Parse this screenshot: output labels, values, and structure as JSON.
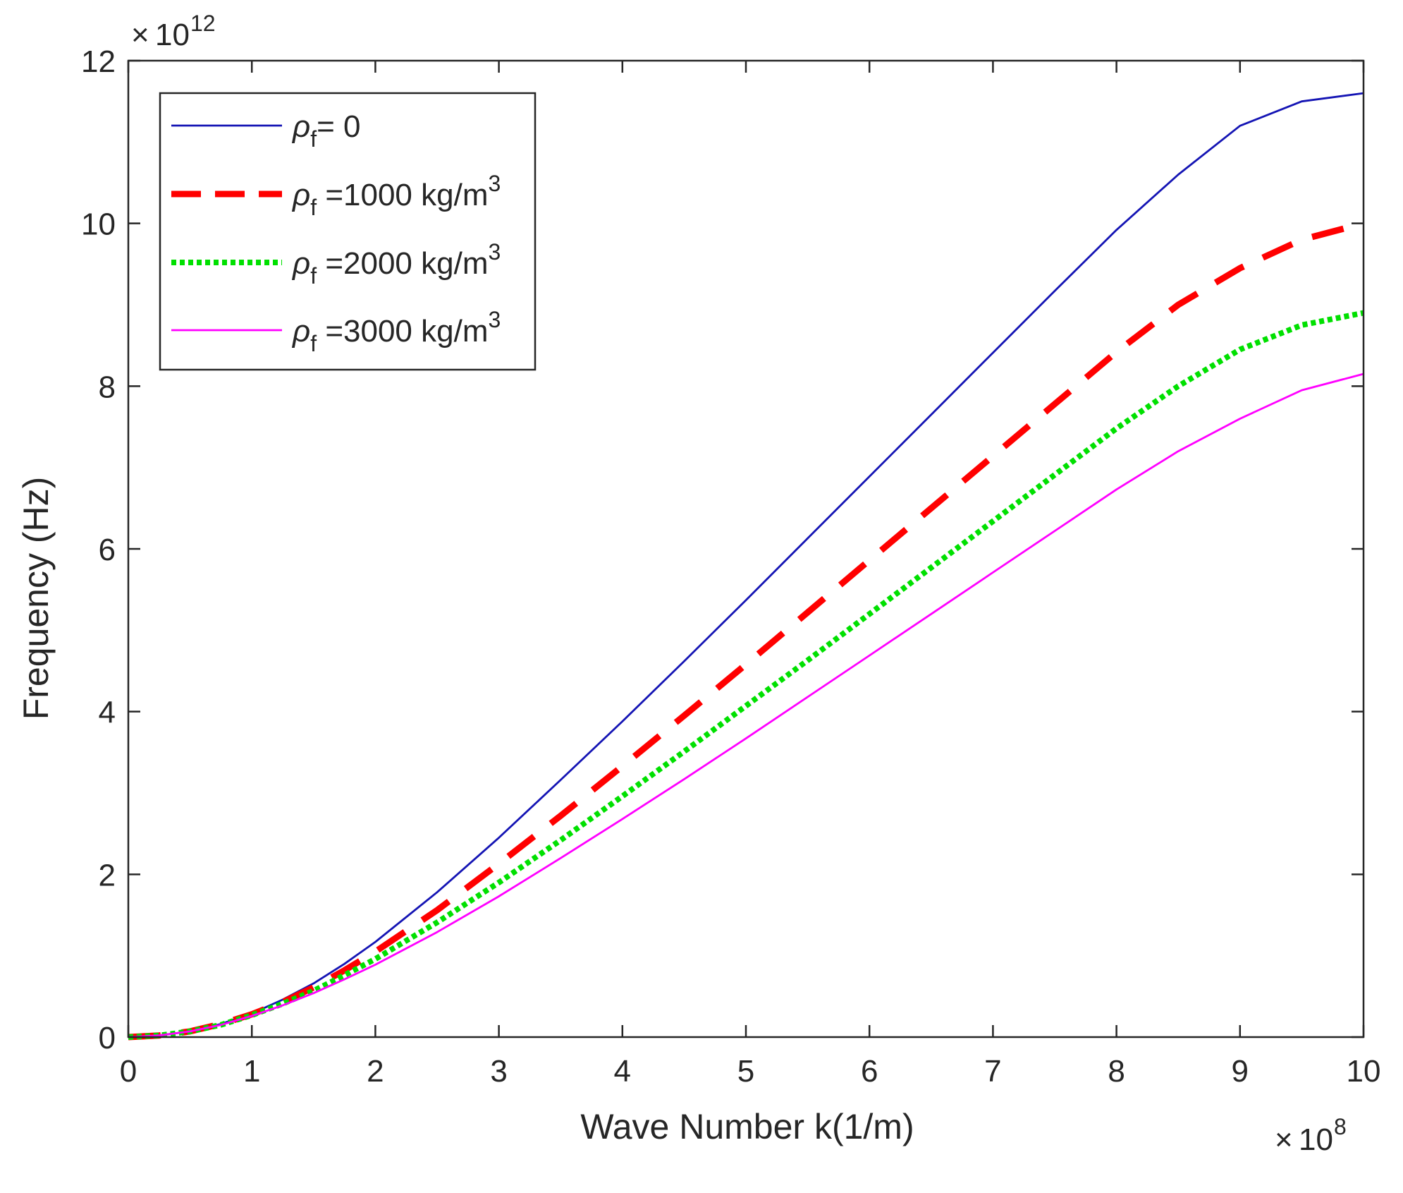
{
  "chart_data": {
    "type": "line",
    "title": "",
    "xlabel": "Wave Number k(1/m)",
    "ylabel": "Frequency (Hz)",
    "x_exponent_label": "10",
    "x_exponent_power": "8",
    "y_exponent_label": "10",
    "y_exponent_power": "12",
    "xlim": [
      0,
      10
    ],
    "ylim": [
      0,
      12
    ],
    "xticks": [
      0,
      1,
      2,
      3,
      4,
      5,
      6,
      7,
      8,
      9,
      10
    ],
    "yticks": [
      0,
      2,
      4,
      6,
      8,
      10,
      12
    ],
    "grid": false,
    "legend_position": "top-left",
    "x": [
      0,
      0.25,
      0.5,
      0.75,
      1.0,
      1.25,
      1.5,
      1.75,
      2.0,
      2.5,
      3.0,
      3.5,
      4.0,
      4.5,
      5.0,
      5.5,
      6.0,
      6.5,
      7.0,
      7.5,
      8.0,
      8.5,
      9.0,
      9.5,
      10.0
    ],
    "series": [
      {
        "name": "ρf= 0",
        "legend_symbol": "ρ",
        "legend_subscript": "f",
        "legend_text": "= 0",
        "legend_superscript": "",
        "color": "#1414b4",
        "style": "solid",
        "values": [
          0,
          0.02,
          0.07,
          0.16,
          0.29,
          0.46,
          0.66,
          0.9,
          1.17,
          1.78,
          2.45,
          3.16,
          3.88,
          4.62,
          5.37,
          6.13,
          6.89,
          7.65,
          8.41,
          9.17,
          9.92,
          10.6,
          11.2,
          11.5,
          11.6
        ]
      },
      {
        "name": "ρf =1000 kg/m3",
        "legend_symbol": "ρ",
        "legend_subscript": "f",
        "legend_text": " =1000 kg/m",
        "legend_superscript": "3",
        "color": "#ff0000",
        "style": "dashed",
        "values": [
          0,
          0.02,
          0.07,
          0.16,
          0.28,
          0.43,
          0.61,
          0.82,
          1.05,
          1.56,
          2.13,
          2.72,
          3.33,
          3.95,
          4.58,
          5.22,
          5.86,
          6.5,
          7.14,
          7.78,
          8.42,
          9.0,
          9.45,
          9.8,
          10.0
        ]
      },
      {
        "name": "ρf =2000 kg/m3",
        "legend_symbol": "ρ",
        "legend_subscript": "f",
        "legend_text": " =2000 kg/m",
        "legend_superscript": "3",
        "color": "#00e000",
        "style": "dotted",
        "values": [
          0,
          0.02,
          0.07,
          0.15,
          0.27,
          0.41,
          0.57,
          0.76,
          0.96,
          1.41,
          1.9,
          2.42,
          2.96,
          3.51,
          4.07,
          4.63,
          5.2,
          5.77,
          6.34,
          6.91,
          7.48,
          8.0,
          8.45,
          8.75,
          8.9
        ]
      },
      {
        "name": "ρf =3000 kg/m3",
        "legend_symbol": "ρ",
        "legend_subscript": "f",
        "legend_text": " =3000 kg/m",
        "legend_superscript": "3",
        "color": "#ff00ff",
        "style": "solid",
        "values": [
          0,
          0.02,
          0.07,
          0.15,
          0.26,
          0.39,
          0.54,
          0.71,
          0.89,
          1.29,
          1.73,
          2.2,
          2.68,
          3.17,
          3.67,
          4.18,
          4.69,
          5.2,
          5.71,
          6.22,
          6.73,
          7.2,
          7.6,
          7.95,
          8.15
        ]
      }
    ]
  },
  "colors": {
    "axis": "#262626",
    "background": "#ffffff"
  }
}
